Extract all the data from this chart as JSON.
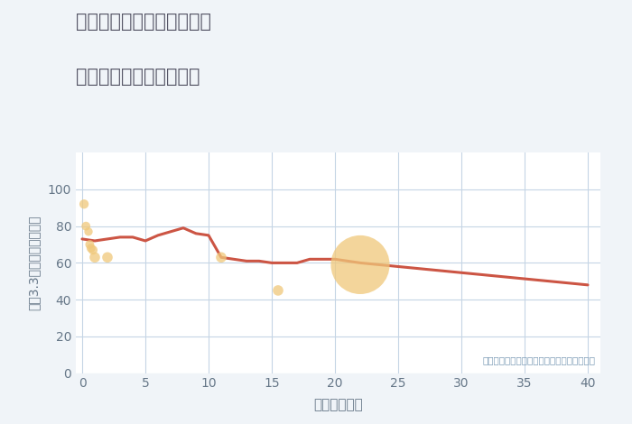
{
  "title_line1": "奈良県奈良市佐保台西町の",
  "title_line2": "築年数別中古戸建て価格",
  "xlabel": "築年数（年）",
  "ylabel": "坪（3.3㎡）単価（万円）",
  "annotation": "円の大きさは、取引のあった物件面積を示す",
  "bg_color": "#f0f4f8",
  "plot_bg_color": "#ffffff",
  "grid_color": "#c5d5e5",
  "title_color": "#555566",
  "axis_label_color": "#667788",
  "annotation_color": "#7a9ab5",
  "line_color": "#cc5544",
  "scatter_color": "#f0c87a",
  "scatter_alpha": 0.75,
  "line_width": 2.2,
  "xlim": [
    -0.5,
    41
  ],
  "ylim": [
    0,
    120
  ],
  "xticks": [
    0,
    5,
    10,
    15,
    20,
    25,
    30,
    35,
    40
  ],
  "yticks": [
    0,
    20,
    40,
    60,
    80,
    100
  ],
  "line_x": [
    0,
    1,
    2,
    3,
    4,
    5,
    6,
    7,
    8,
    9,
    10,
    11,
    12,
    13,
    14,
    15,
    16,
    17,
    18,
    19,
    20,
    22,
    40
  ],
  "line_y": [
    73,
    72,
    73,
    74,
    74,
    72,
    75,
    77,
    79,
    76,
    75,
    63,
    62,
    61,
    61,
    60,
    60,
    60,
    62,
    62,
    62,
    60,
    48
  ],
  "scatter_x": [
    0.15,
    0.3,
    0.5,
    0.6,
    0.7,
    0.85,
    1.0,
    2.0,
    11.0,
    15.5,
    22.0
  ],
  "scatter_y": [
    92,
    80,
    77,
    70,
    68,
    67,
    63,
    63,
    63,
    45,
    59
  ],
  "scatter_size": [
    55,
    50,
    45,
    50,
    50,
    55,
    70,
    70,
    70,
    70,
    2200
  ]
}
